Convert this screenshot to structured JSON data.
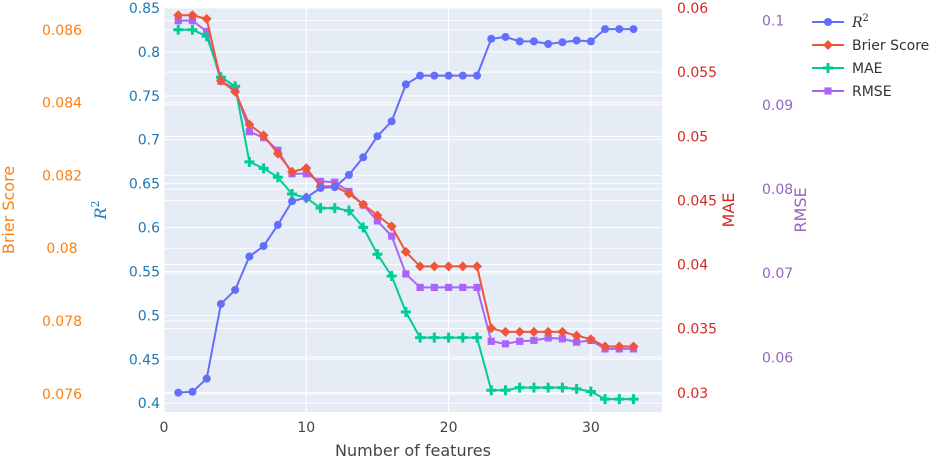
{
  "chart_data": {
    "type": "line",
    "title": "",
    "xlabel": "Number of features",
    "x": [
      1,
      2,
      3,
      4,
      5,
      6,
      7,
      8,
      9,
      10,
      11,
      12,
      13,
      14,
      15,
      16,
      17,
      18,
      19,
      20,
      21,
      22,
      23,
      24,
      25,
      26,
      27,
      28,
      29,
      30,
      31,
      32,
      33
    ],
    "xlim": [
      0,
      35
    ],
    "xticks": [
      0,
      10,
      20,
      30
    ],
    "grid": true,
    "legend_position": "top-right",
    "axes": [
      {
        "id": "r2",
        "label": "R",
        "label_sup": "2",
        "color": "#1f77b4",
        "range": [
          0.39,
          0.85
        ],
        "ticks": [
          0.4,
          0.45,
          0.5,
          0.55,
          0.6,
          0.65,
          0.7,
          0.75,
          0.8,
          0.85
        ],
        "tick_labels": [
          "0.4",
          "0.45",
          "0.5",
          "0.55",
          "0.6",
          "0.65",
          "0.7",
          "0.75",
          "0.8",
          "0.85"
        ]
      },
      {
        "id": "brier",
        "label": "Brier Score",
        "color": "#ff7f0e",
        "range": [
          0.0755,
          0.0866
        ],
        "ticks": [
          0.076,
          0.078,
          0.08,
          0.082,
          0.084,
          0.086
        ],
        "tick_labels": [
          "0.076",
          "0.078",
          "0.08",
          "0.082",
          "0.084",
          "0.086"
        ]
      },
      {
        "id": "mae",
        "label": "MAE",
        "color": "#d62728",
        "range": [
          0.0285,
          0.06
        ],
        "ticks": [
          0.03,
          0.035,
          0.04,
          0.045,
          0.05,
          0.055,
          0.06
        ],
        "tick_labels": [
          "0.03",
          "0.035",
          "0.04",
          "0.045",
          "0.05",
          "0.055",
          "0.06"
        ]
      },
      {
        "id": "rmse",
        "label": "RMSE",
        "color": "#9467bd",
        "range": [
          0.0535,
          0.1015
        ],
        "ticks": [
          0.06,
          0.07,
          0.08,
          0.09,
          0.1
        ],
        "tick_labels": [
          "0.06",
          "0.07",
          "0.08",
          "0.09",
          "0.1"
        ]
      }
    ],
    "series": [
      {
        "name": "R",
        "name_sup": "2",
        "axis": "r2",
        "color": "#636efa",
        "marker": "circle",
        "values": [
          0.412,
          0.413,
          0.428,
          0.513,
          0.529,
          0.567,
          0.579,
          0.603,
          0.63,
          0.634,
          0.645,
          0.646,
          0.66,
          0.68,
          0.704,
          0.721,
          0.763,
          0.773,
          0.773,
          0.773,
          0.773,
          0.773,
          0.815,
          0.817,
          0.812,
          0.812,
          0.809,
          0.811,
          0.813,
          0.812,
          0.826,
          0.826,
          0.826
        ]
      },
      {
        "name": "Brier Score",
        "axis": "brier",
        "color": "#ef553b",
        "marker": "diamond",
        "values": [
          0.0864,
          0.0864,
          0.0863,
          0.0846,
          0.0843,
          0.0834,
          0.0831,
          0.0826,
          0.0821,
          0.0822,
          0.0817,
          0.0817,
          0.0815,
          0.0812,
          0.0809,
          0.0806,
          0.0799,
          0.0795,
          0.0795,
          0.0795,
          0.0795,
          0.0795,
          0.0778,
          0.0777,
          0.0777,
          0.0777,
          0.0777,
          0.0777,
          0.0776,
          0.0775,
          0.0773,
          0.0773,
          0.0773
        ]
      },
      {
        "name": "MAE",
        "axis": "mae",
        "color": "#00cc96",
        "marker": "cross",
        "values": [
          0.0583,
          0.0583,
          0.0578,
          0.0546,
          0.0539,
          0.048,
          0.0475,
          0.0468,
          0.0455,
          0.0452,
          0.0444,
          0.0444,
          0.0442,
          0.0429,
          0.0408,
          0.0391,
          0.0363,
          0.0343,
          0.0343,
          0.0343,
          0.0343,
          0.0343,
          0.0302,
          0.0302,
          0.0304,
          0.0304,
          0.0304,
          0.0304,
          0.0303,
          0.0301,
          0.0295,
          0.0295,
          0.0295
        ]
      },
      {
        "name": "RMSE",
        "axis": "rmse",
        "color": "#ab63fa",
        "marker": "square",
        "values": [
          0.1,
          0.1,
          0.0987,
          0.0928,
          0.0919,
          0.0868,
          0.0861,
          0.0846,
          0.0818,
          0.0818,
          0.0809,
          0.0808,
          0.0797,
          0.0781,
          0.0762,
          0.0744,
          0.0699,
          0.0683,
          0.0683,
          0.0683,
          0.0683,
          0.0683,
          0.0619,
          0.0616,
          0.0619,
          0.062,
          0.0623,
          0.0622,
          0.0618,
          0.062,
          0.061,
          0.061,
          0.061
        ]
      }
    ]
  }
}
